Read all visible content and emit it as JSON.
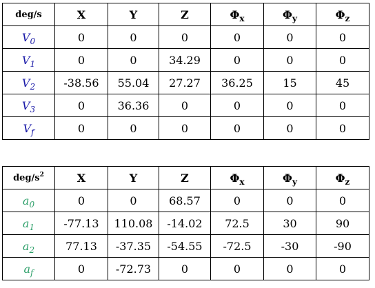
{
  "velocity_table": {
    "unit": "deg/s",
    "headers": {
      "x": "X",
      "y": "Y",
      "z": "Z",
      "phi": "Φ",
      "phi_x_sub": "x",
      "phi_y_sub": "y",
      "phi_z_sub": "z"
    },
    "rows": [
      {
        "sym": "V",
        "sub": "0",
        "values": [
          "0",
          "0",
          "0",
          "0",
          "0",
          "0"
        ]
      },
      {
        "sym": "V",
        "sub": "1",
        "values": [
          "0",
          "0",
          "34.29",
          "0",
          "0",
          "0"
        ]
      },
      {
        "sym": "V",
        "sub": "2",
        "values": [
          "-38.56",
          "55.04",
          "27.27",
          "36.25",
          "15",
          "45"
        ]
      },
      {
        "sym": "V",
        "sub": "3",
        "values": [
          "0",
          "36.36",
          "0",
          "0",
          "0",
          "0"
        ]
      },
      {
        "sym": "V",
        "sub": "f",
        "values": [
          "0",
          "0",
          "0",
          "0",
          "0",
          "0"
        ]
      }
    ]
  },
  "acceleration_table": {
    "unit": "deg/s",
    "unit_exp": "2",
    "headers": {
      "x": "X",
      "y": "Y",
      "z": "Z",
      "phi": "Φ",
      "phi_x_sub": "x",
      "phi_y_sub": "y",
      "phi_z_sub": "z"
    },
    "rows": [
      {
        "sym": "a",
        "sub": "0",
        "values": [
          "0",
          "0",
          "68.57",
          "0",
          "0",
          "0"
        ]
      },
      {
        "sym": "a",
        "sub": "1",
        "values": [
          "-77.13",
          "110.08",
          "-14.02",
          "72.5",
          "30",
          "90"
        ]
      },
      {
        "sym": "a",
        "sub": "2",
        "values": [
          "77.13",
          "-37.35",
          "-54.55",
          "-72.5",
          "-30",
          "-90"
        ]
      },
      {
        "sym": "a",
        "sub": "f",
        "values": [
          "0",
          "-72.73",
          "0",
          "0",
          "0",
          "0"
        ]
      }
    ]
  },
  "colors": {
    "velocity_label": "#1a1aa8",
    "acceleration_label": "#2fa06b"
  }
}
